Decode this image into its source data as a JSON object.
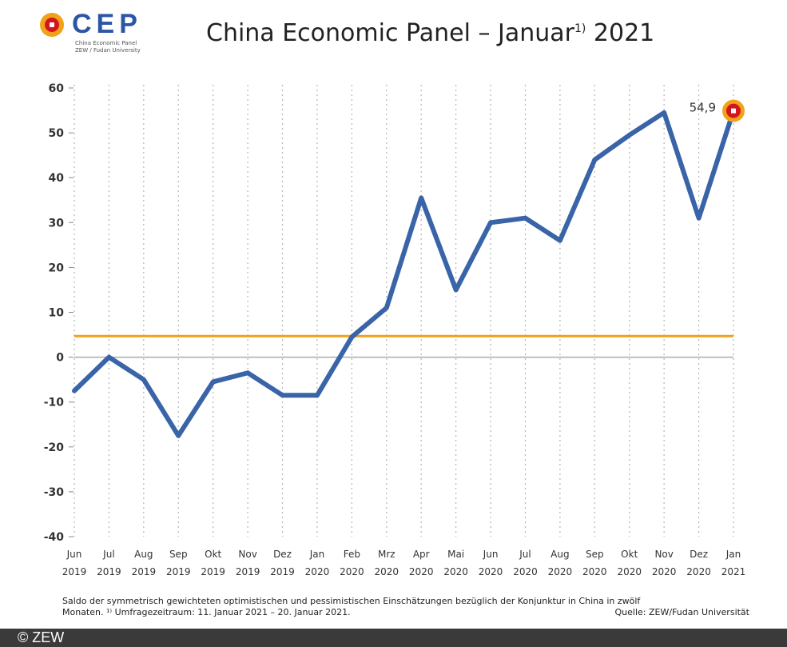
{
  "logo": {
    "text": "CEP",
    "sub_line1": "China Economic Panel",
    "sub_line2": "ZEW / Fudan University"
  },
  "title_main": "China Economic Panel – Januar",
  "title_sup": "1)",
  "title_year": " 2021",
  "chart_data": {
    "type": "line",
    "title": "China Economic Panel – Januar1) 2021",
    "categories": [
      [
        "Jun",
        "2019"
      ],
      [
        "Jul",
        "2019"
      ],
      [
        "Aug",
        "2019"
      ],
      [
        "Sep",
        "2019"
      ],
      [
        "Okt",
        "2019"
      ],
      [
        "Nov",
        "2019"
      ],
      [
        "Dez",
        "2019"
      ],
      [
        "Jan",
        "2020"
      ],
      [
        "Feb",
        "2020"
      ],
      [
        "Mrz",
        "2020"
      ],
      [
        "Apr",
        "2020"
      ],
      [
        "Mai",
        "2020"
      ],
      [
        "Jun",
        "2020"
      ],
      [
        "Jul",
        "2020"
      ],
      [
        "Aug",
        "2020"
      ],
      [
        "Sep",
        "2020"
      ],
      [
        "Okt",
        "2020"
      ],
      [
        "Nov",
        "2020"
      ],
      [
        "Dez",
        "2020"
      ],
      [
        "Jan",
        "2021"
      ]
    ],
    "series": [
      {
        "values": [
          -7.5,
          0,
          -5,
          -17.5,
          -5.5,
          -3.5,
          -8.5,
          -8.5,
          4.5,
          11,
          35.5,
          15,
          30,
          31,
          26,
          44,
          49.5,
          54.5,
          31,
          54.9
        ],
        "color": "#3a64a8"
      }
    ],
    "reference_line": {
      "value": 4.7,
      "color": "#f2a21a"
    },
    "zero_line_color": "#aaaaaa",
    "ylim": [
      -40,
      60
    ],
    "yticks": [
      60,
      50,
      40,
      30,
      20,
      10,
      0,
      -10,
      -20,
      -30,
      -40
    ],
    "grid": "vertical-dotted",
    "highlight": {
      "index": 19,
      "label": "54,9",
      "marker_outer": "#f2a21a",
      "marker_inner": "#d4161c"
    }
  },
  "footnote": {
    "line1": "Saldo der symmetrisch gewichteten optimistischen und pessimistischen Einschätzungen bezüglich der Konjunktur in China in zwölf",
    "line2": "Monaten. ¹⁾ Umfragezeitraum: 11. Januar 2021 – 20. Januar 2021.",
    "source": "Quelle: ZEW/Fudan Universität"
  },
  "copyright": "© ZEW"
}
